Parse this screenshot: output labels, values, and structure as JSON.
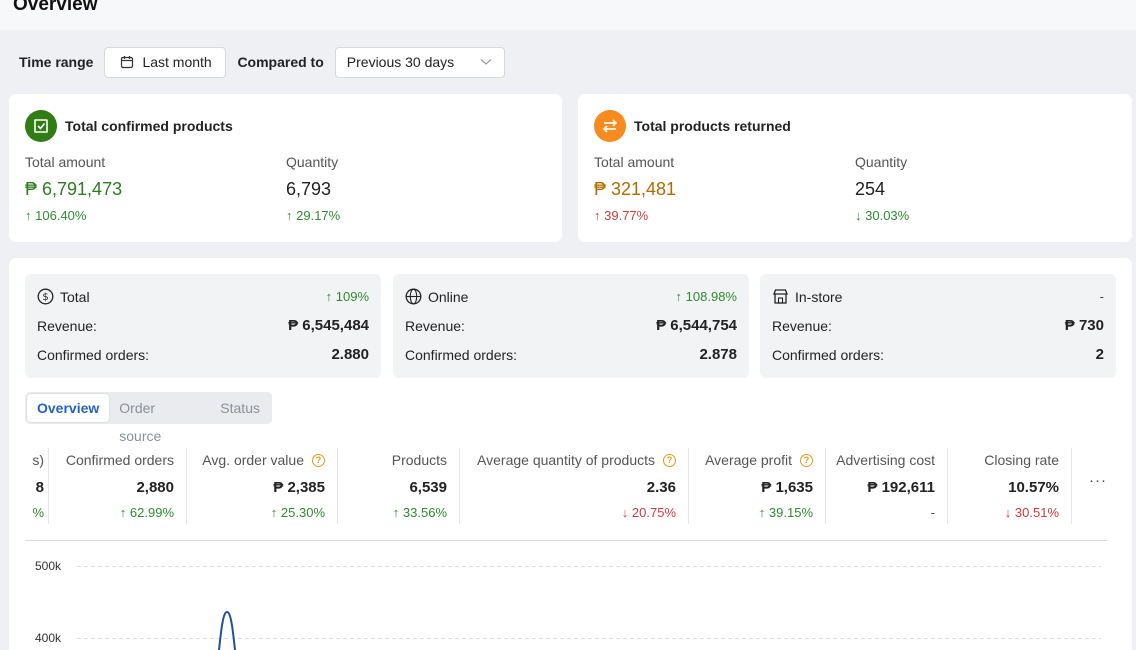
{
  "page": {
    "title": "Overview"
  },
  "filters": {
    "time_range_label": "Time range",
    "time_range_value": "Last month",
    "compared_label": "Compared to",
    "compared_value": "Previous 30 days"
  },
  "summary": [
    {
      "title": "Total confirmed products",
      "icon": "check-square-icon",
      "color": "#2f7d14",
      "amount_label": "Total amount",
      "amount": "₱ 6,791,473",
      "amount_change": "106.40%",
      "amount_dir": "up",
      "qty_label": "Quantity",
      "qty": "6,793",
      "qty_change": "29.17%",
      "qty_dir": "up"
    },
    {
      "title": "Total products returned",
      "icon": "swap-arrows-icon",
      "color": "#f78b1f",
      "amount_label": "Total amount",
      "amount": "₱ 321,481",
      "amount_change": "39.77%",
      "amount_dir": "up",
      "qty_label": "Quantity",
      "qty": "254",
      "qty_change": "30.03%",
      "qty_dir": "down"
    }
  ],
  "channels": [
    {
      "name": "Total",
      "icon": "dollar-circle-icon",
      "change": "109%",
      "revenue_label": "Revenue:",
      "revenue": "₱ 6,545,484",
      "orders_label": "Confirmed orders:",
      "orders": "2.880"
    },
    {
      "name": "Online",
      "icon": "globe-icon",
      "change": "108.98%",
      "revenue_label": "Revenue:",
      "revenue": "₱ 6,544,754",
      "orders_label": "Confirmed orders:",
      "orders": "2.878"
    },
    {
      "name": "In-store",
      "icon": "store-icon",
      "change": "-",
      "revenue_label": "Revenue:",
      "revenue": "₱ 730",
      "orders_label": "Confirmed orders:",
      "orders": "2"
    }
  ],
  "tabs": [
    "Overview",
    "Order source",
    "Status"
  ],
  "kpis": [
    {
      "label": "s)",
      "value": "8",
      "change": "%",
      "dir": "none"
    },
    {
      "label": "Confirmed orders",
      "value": "2,880",
      "change": "62.99%",
      "dir": "up"
    },
    {
      "label": "Avg. order value",
      "value": "₱ 2,385",
      "change": "25.30%",
      "dir": "up",
      "info": true
    },
    {
      "label": "Products",
      "value": "6,539",
      "change": "33.56%",
      "dir": "up"
    },
    {
      "label": "Average quantity of products",
      "value": "2.36",
      "change": "20.75%",
      "dir": "down",
      "info": true
    },
    {
      "label": "Average profit",
      "value": "₱ 1,635",
      "change": "39.15%",
      "dir": "up",
      "info": true
    },
    {
      "label": "Advertising cost",
      "value": "₱ 192,611",
      "change": "-",
      "dir": "none"
    },
    {
      "label": "Closing rate",
      "value": "10.57%",
      "change": "30.51%",
      "dir": "down"
    }
  ],
  "more_label": "···",
  "chart_data": {
    "type": "line",
    "y_ticks": [
      "500k",
      "400k"
    ],
    "series": [
      {
        "color": "#1f4fa3",
        "values": []
      }
    ],
    "grid": true
  }
}
